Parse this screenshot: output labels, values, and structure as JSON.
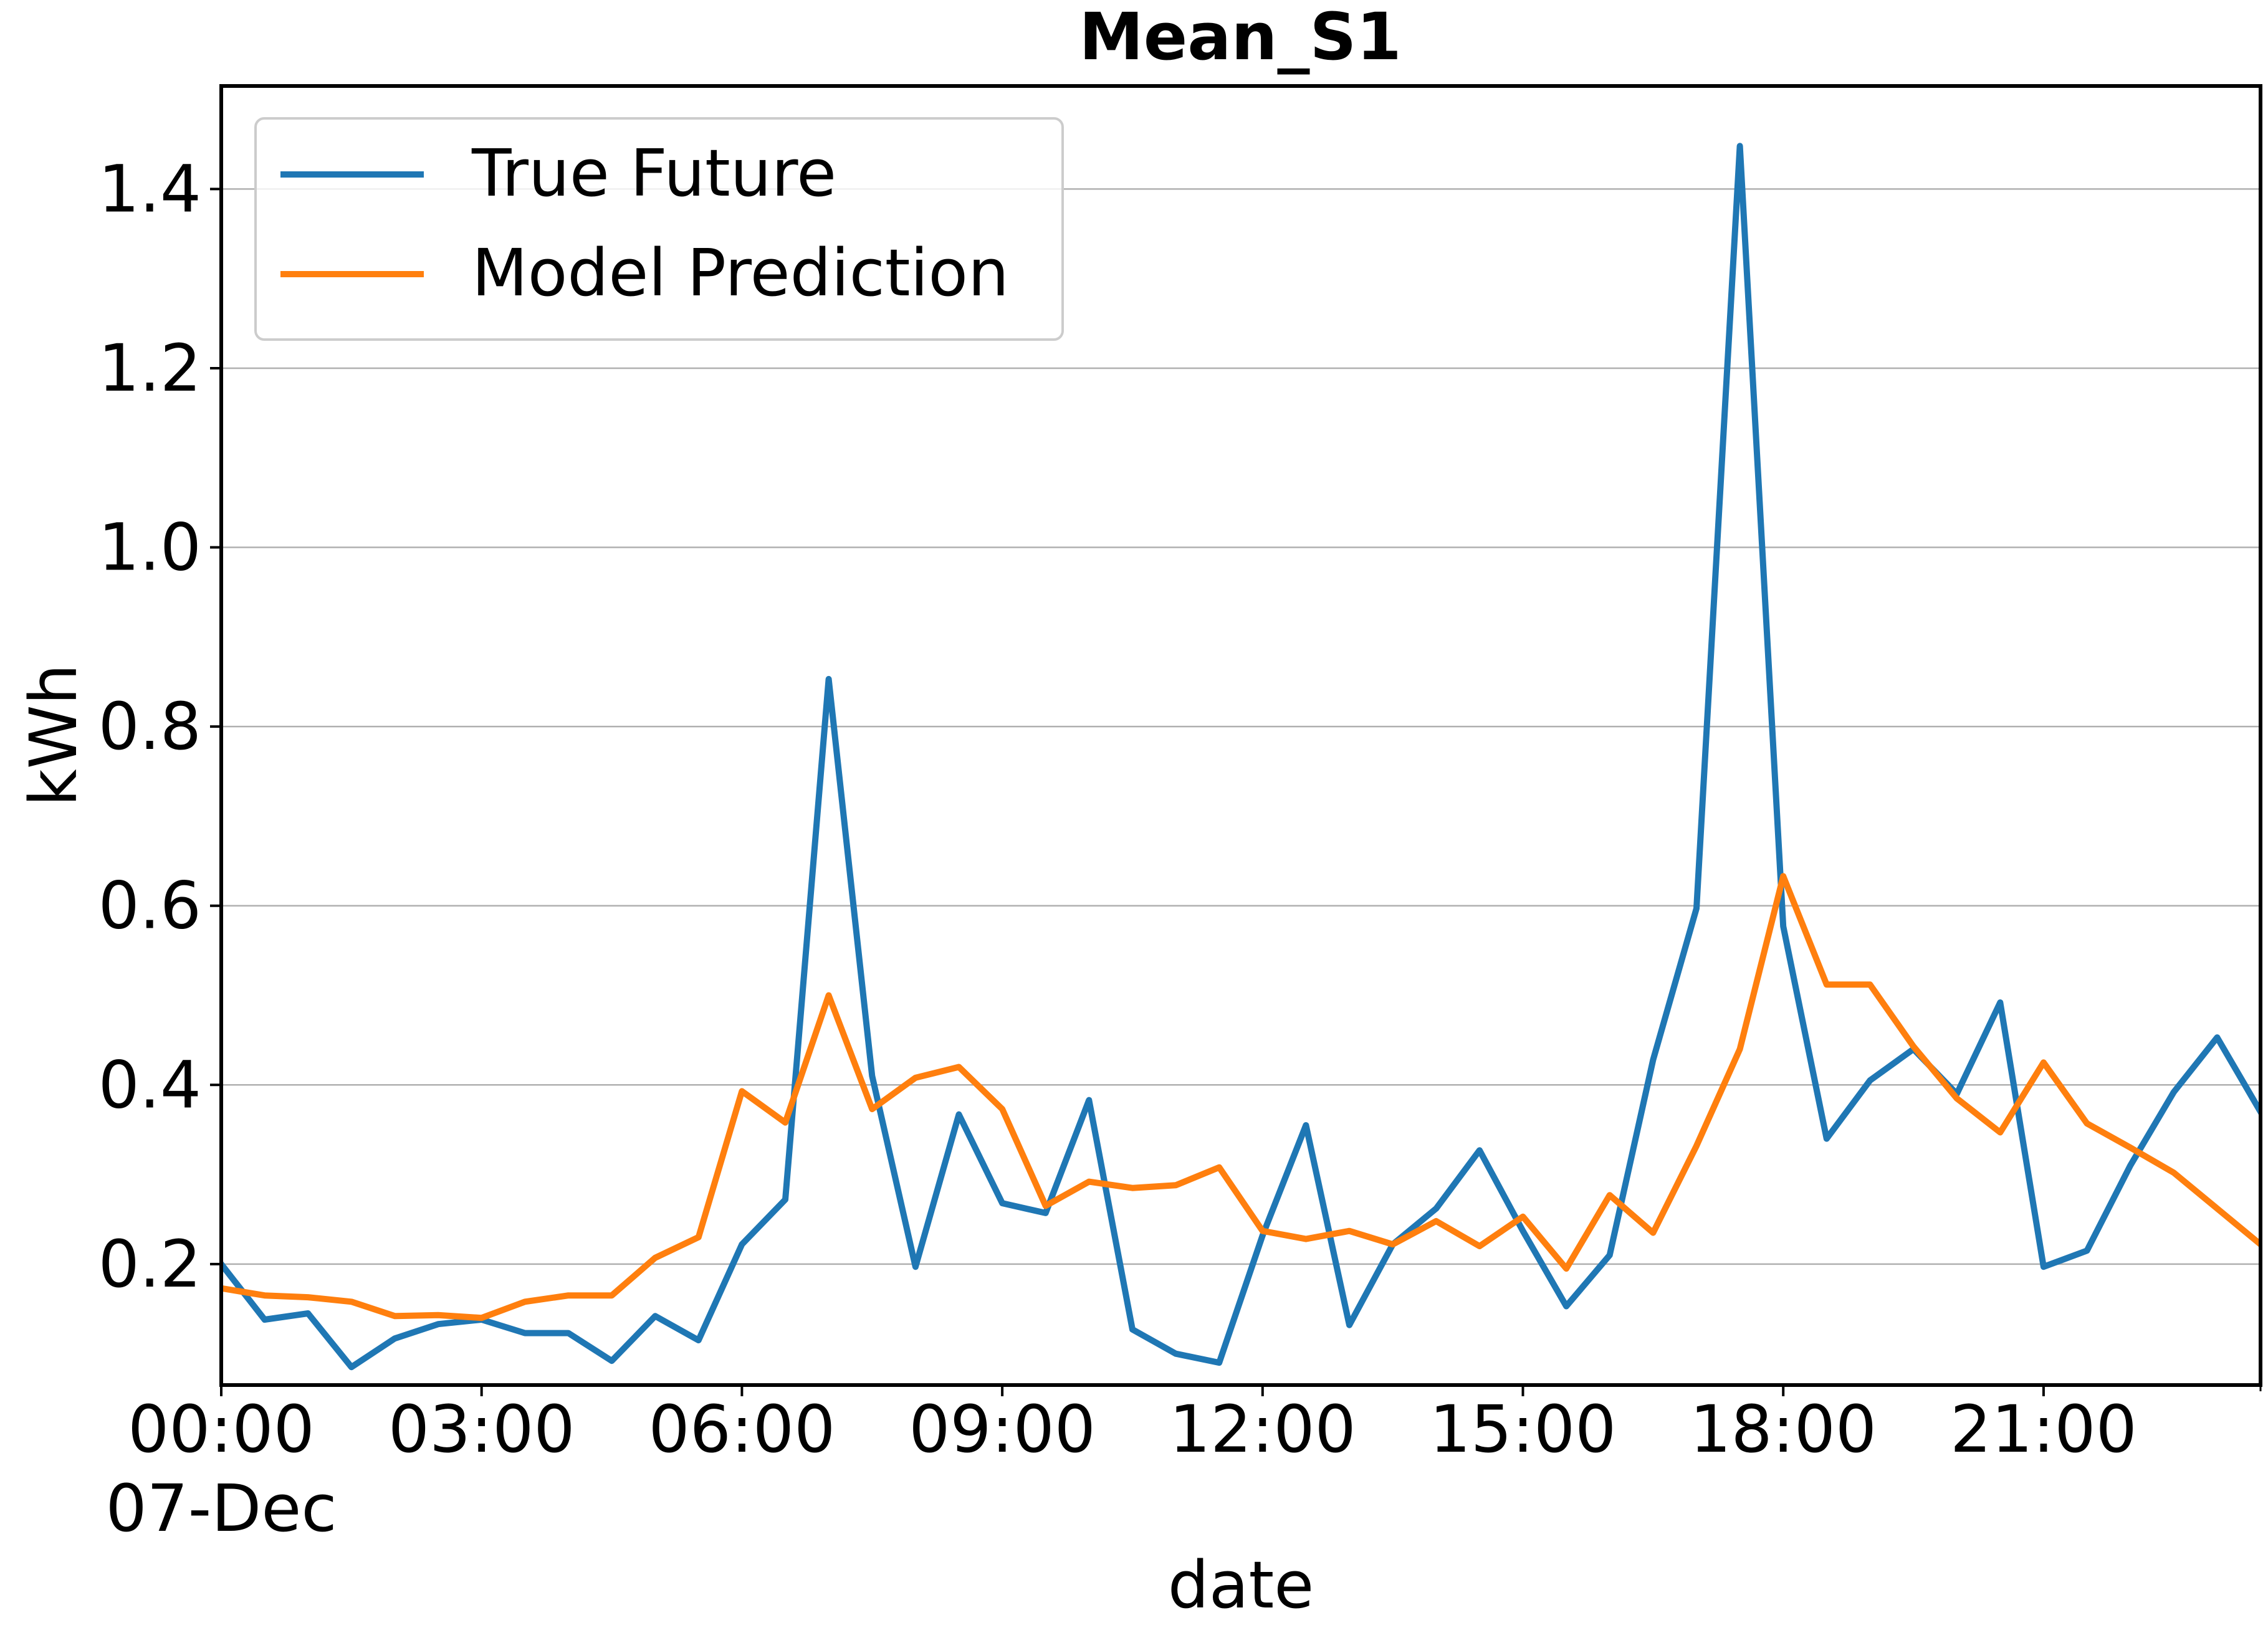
{
  "chart_data": {
    "type": "line",
    "title": "Mean_S1",
    "xlabel": "date",
    "ylabel": "kWh",
    "x_unit": "time of day",
    "x": [
      "00:00",
      "00:30",
      "01:00",
      "01:30",
      "02:00",
      "02:30",
      "03:00",
      "03:30",
      "04:00",
      "04:30",
      "05:00",
      "05:30",
      "06:00",
      "06:30",
      "07:00",
      "07:30",
      "08:00",
      "08:30",
      "09:00",
      "09:30",
      "10:00",
      "10:30",
      "11:00",
      "11:30",
      "12:00",
      "12:30",
      "13:00",
      "13:30",
      "14:00",
      "14:30",
      "15:00",
      "15:30",
      "16:00",
      "16:30",
      "17:00",
      "17:30",
      "18:00",
      "18:30",
      "19:00",
      "19:30",
      "20:00",
      "20:30",
      "21:00",
      "21:30",
      "22:00",
      "22:30",
      "23:00",
      "23:30"
    ],
    "xlim": [
      "00:00",
      "23:30"
    ],
    "ylim": [
      0.065,
      1.515
    ],
    "xticks": [
      {
        "t": "00:00",
        "label": "00:00",
        "sublabel": "07-Dec"
      },
      {
        "t": "03:00",
        "label": "03:00"
      },
      {
        "t": "06:00",
        "label": "06:00"
      },
      {
        "t": "09:00",
        "label": "09:00"
      },
      {
        "t": "12:00",
        "label": "12:00"
      },
      {
        "t": "15:00",
        "label": "15:00"
      },
      {
        "t": "18:00",
        "label": "18:00"
      },
      {
        "t": "21:00",
        "label": "21:00"
      }
    ],
    "yticks": [
      {
        "v": 0.2,
        "label": "0.2"
      },
      {
        "v": 0.4,
        "label": "0.4"
      },
      {
        "v": 0.6,
        "label": "0.6"
      },
      {
        "v": 0.8,
        "label": "0.8"
      },
      {
        "v": 1.0,
        "label": "1.0"
      },
      {
        "v": 1.2,
        "label": "1.2"
      },
      {
        "v": 1.4,
        "label": "1.4"
      }
    ],
    "grid": "horizontal",
    "legend_position": "top-left",
    "series": [
      {
        "name": "True Future",
        "color": "#1f77b4",
        "values": [
          0.2,
          0.138,
          0.145,
          0.085,
          0.117,
          0.133,
          0.138,
          0.123,
          0.123,
          0.092,
          0.142,
          0.115,
          0.222,
          0.272,
          0.853,
          0.41,
          0.197,
          0.367,
          0.268,
          0.257,
          0.383,
          0.127,
          0.1,
          0.09,
          0.232,
          0.355,
          0.132,
          0.222,
          0.262,
          0.327,
          0.237,
          0.153,
          0.21,
          0.428,
          0.597,
          1.448,
          0.577,
          0.34,
          0.405,
          0.44,
          0.39,
          0.492,
          0.197,
          0.215,
          0.31,
          0.392,
          0.453,
          0.37
        ]
      },
      {
        "name": "Model Prediction",
        "color": "#ff7f0e",
        "values": [
          0.173,
          0.165,
          0.163,
          0.158,
          0.142,
          0.143,
          0.14,
          0.158,
          0.165,
          0.165,
          0.207,
          0.23,
          0.393,
          0.358,
          0.5,
          0.373,
          0.408,
          0.42,
          0.373,
          0.265,
          0.292,
          0.285,
          0.288,
          0.308,
          0.237,
          0.228,
          0.237,
          0.222,
          0.248,
          0.22,
          0.253,
          0.195,
          0.277,
          0.235,
          0.332,
          0.44,
          0.633,
          0.512,
          0.512,
          0.443,
          0.385,
          0.347,
          0.425,
          0.357,
          0.33,
          0.302,
          0.262,
          0.222
        ]
      }
    ]
  }
}
